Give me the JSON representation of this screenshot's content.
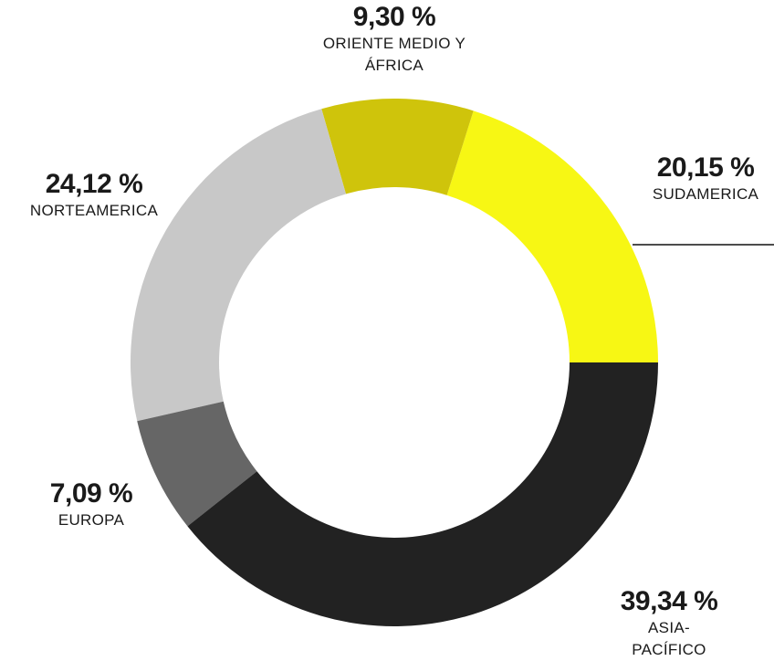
{
  "chart_data": {
    "type": "donut",
    "categories": [
      "ASIA-PACÍFICO",
      "EUROPA",
      "NORTEAMERICA",
      "ORIENTE MEDIO Y ÁFRICA",
      "SUDAMERICA"
    ],
    "values": [
      39.34,
      7.09,
      24.12,
      9.3,
      20.15
    ],
    "value_labels": [
      "39,34 %",
      "7,09 %",
      "24,12 %",
      "9,30 %",
      "20,15 %"
    ],
    "colors": [
      "#222222",
      "#666666",
      "#c8c8c8",
      "#cfc40b",
      "#f7f714"
    ]
  }
}
